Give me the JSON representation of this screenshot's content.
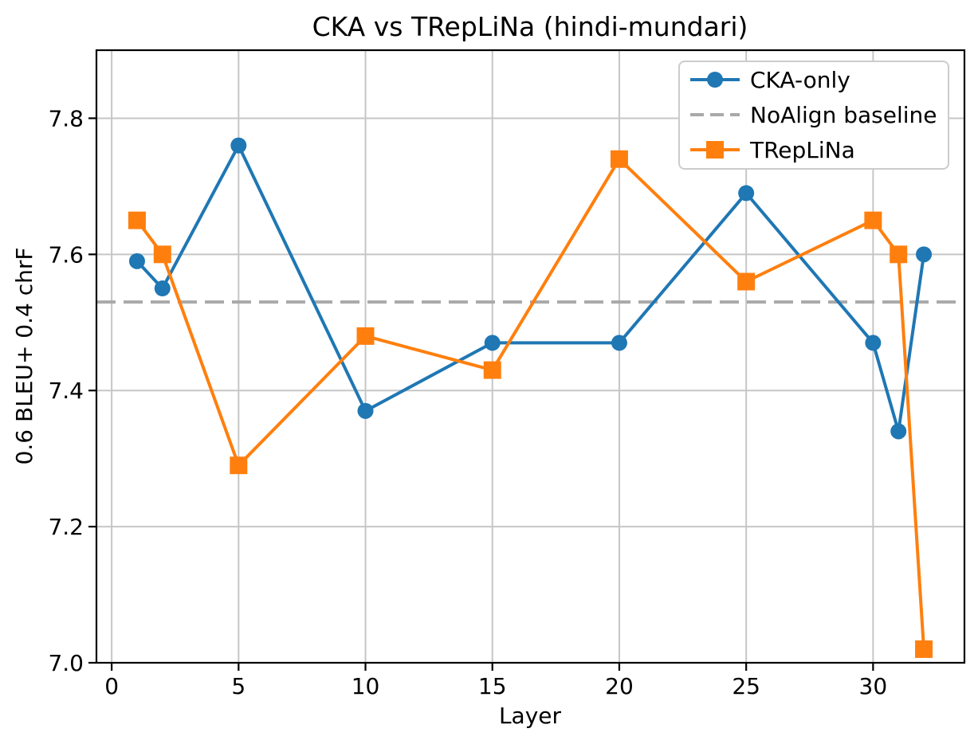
{
  "chart_data": {
    "type": "line",
    "title": "CKA vs TRepLiNa (hindi-mundari)",
    "xlabel": "Layer",
    "ylabel": "0.6 BLEU+ 0.4 chrF",
    "x": [
      1,
      2,
      5,
      10,
      15,
      20,
      25,
      30,
      31,
      32
    ],
    "series": [
      {
        "name": "CKA-only",
        "color": "#1f77b4",
        "marker": "circle",
        "values": [
          7.59,
          7.55,
          7.76,
          7.37,
          7.47,
          7.47,
          7.69,
          7.47,
          7.34,
          7.6
        ]
      },
      {
        "name": "TRepLiNa",
        "color": "#ff7f0e",
        "marker": "square",
        "values": [
          7.65,
          7.6,
          7.29,
          7.48,
          7.43,
          7.74,
          7.56,
          7.65,
          7.6,
          7.02
        ]
      }
    ],
    "baseline": {
      "label": "NoAlign baseline",
      "value": 7.53,
      "color": "#a9a9a9",
      "style": "dashed"
    },
    "xlim": [
      -0.6,
      33.6
    ],
    "ylim": [
      7.0,
      7.9
    ],
    "xticks": [
      0,
      5,
      10,
      15,
      20,
      25,
      30
    ],
    "yticks": [
      7.0,
      7.2,
      7.4,
      7.6,
      7.8
    ],
    "grid": true,
    "grid_color": "#c6c6c6",
    "spine_color": "#000000",
    "legend": {
      "position": "upper right",
      "items": [
        {
          "label": "CKA-only",
          "swatch": "blue-line-circle"
        },
        {
          "label": "NoAlign baseline",
          "swatch": "gray-dashed-line"
        },
        {
          "label": "TRepLiNa",
          "swatch": "orange-line-square"
        }
      ]
    }
  }
}
